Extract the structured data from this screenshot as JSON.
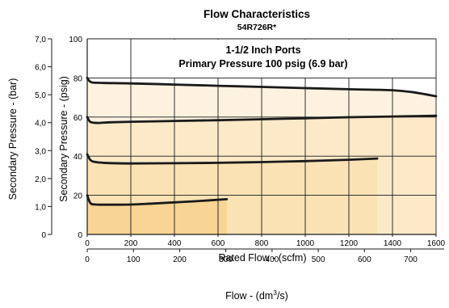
{
  "chart_data": {
    "type": "line",
    "title": "Flow Characteristics",
    "subtitle": "54R726R*",
    "annotation": [
      "1-1/2 Inch Ports",
      "Primary Pressure 100 psig (6.9 bar)"
    ],
    "xlabel": "Rated Flow - (scfm)",
    "x2label_prefix": "Flow - (dm",
    "x2label_sup": "3",
    "x2label_suffix": "/s)",
    "ylabel": "Secondary Pressure - (psig)",
    "y2label": "Secondary Pressure - (bar)",
    "xlim": [
      0,
      1600
    ],
    "ylim": [
      0,
      100
    ],
    "xticks": [
      0,
      200,
      400,
      600,
      800,
      1000,
      1200,
      1400,
      1600
    ],
    "yticks": [
      0,
      20,
      40,
      60,
      80,
      100
    ],
    "x2lim": [
      0,
      755
    ],
    "x2ticks": [
      0,
      100,
      200,
      300,
      400,
      500,
      600,
      700
    ],
    "y2lim": [
      0,
      7.0
    ],
    "y2ticks": [
      "0",
      "1,0",
      "2,0",
      "3,0",
      "4,0",
      "5,0",
      "6,0",
      "7,0"
    ],
    "grid": true,
    "series": [
      {
        "x": [
          0,
          15,
          40,
          100,
          200,
          300,
          400,
          500,
          640
        ],
        "y": [
          20,
          16,
          15.3,
          15.2,
          15.3,
          15.8,
          16.4,
          17,
          18
        ],
        "fill": "#f8d594"
      },
      {
        "x": [
          0,
          15,
          40,
          100,
          200,
          400,
          600,
          800,
          1000,
          1200,
          1330
        ],
        "y": [
          41,
          38,
          37,
          36.5,
          36.3,
          36.4,
          36.6,
          37,
          37.5,
          38.2,
          38.8
        ],
        "fill": "#fae2b4"
      },
      {
        "x": [
          0,
          15,
          50,
          100,
          200,
          400,
          600,
          800,
          1000,
          1200,
          1400,
          1600
        ],
        "y": [
          60,
          57.5,
          57,
          57.3,
          57.6,
          58,
          58.4,
          58.9,
          59.4,
          59.9,
          60.3,
          60.7
        ],
        "fill": "#fbe9c8"
      },
      {
        "x": [
          0,
          15,
          50,
          200,
          400,
          600,
          800,
          1000,
          1200,
          1400,
          1500,
          1600
        ],
        "y": [
          80,
          78,
          77.5,
          77.2,
          76.6,
          76,
          75.4,
          74.8,
          74.2,
          73.7,
          72.6,
          70.6
        ],
        "fill": "#fdf2df"
      }
    ],
    "colors": {
      "line": "#1a1a1a",
      "grid": "#1a1a1a",
      "background": "#ffffff"
    }
  }
}
